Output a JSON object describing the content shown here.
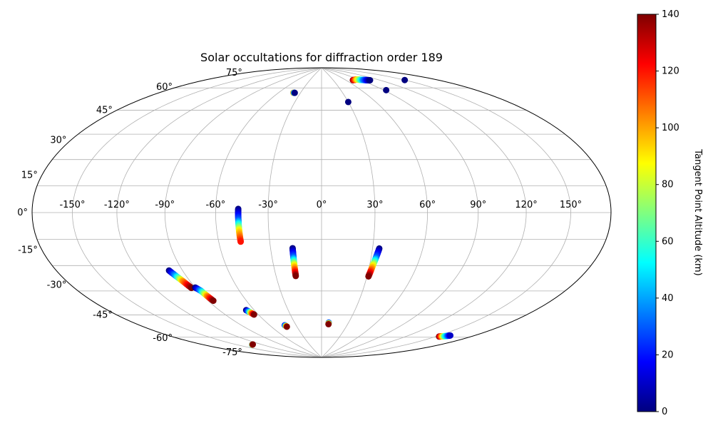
{
  "chart_data": {
    "type": "scatter",
    "projection": "aitoff-hammer",
    "title": "Solar occultations for diffraction order 189",
    "xlabel": "",
    "ylabel": "",
    "xlim": [
      -180,
      180
    ],
    "ylim": [
      -90,
      90
    ],
    "grid": true,
    "lon_ticks": [
      -150,
      -120,
      -90,
      -60,
      -30,
      0,
      30,
      60,
      90,
      120,
      150
    ],
    "lon_tick_labels": [
      "-150°",
      "-120°",
      "-90°",
      "-60°",
      "-30°",
      "0°",
      "30°",
      "60°",
      "90°",
      "120°",
      "150°"
    ],
    "lat_ticks": [
      75,
      60,
      45,
      30,
      15,
      0,
      -15,
      -30,
      -45,
      -60,
      -75
    ],
    "lat_tick_labels": [
      "75°",
      "60°",
      "45°",
      "30°",
      "15°",
      "0°",
      "-15°",
      "-30°",
      "-45°",
      "-60°",
      "-75°"
    ],
    "colorbar": {
      "label": "Tangent Point Altitude (km)",
      "colormap": "jet",
      "range": [
        0,
        140
      ],
      "ticks": [
        0,
        20,
        40,
        60,
        80,
        100,
        120,
        140
      ],
      "tick_labels": [
        "0",
        "20",
        "40",
        "60",
        "80",
        "100",
        "120",
        "140"
      ]
    },
    "tracks": [
      {
        "lon": [
          -47,
          -47,
          -47,
          -47
        ],
        "lat": [
          2,
          -4,
          -10,
          -16
        ],
        "alt": [
          0,
          30,
          90,
          120
        ]
      },
      {
        "lon": [
          -17,
          -17,
          -17,
          -17
        ],
        "lat": [
          -20,
          -25,
          -30,
          -36
        ],
        "alt": [
          0,
          30,
          90,
          140
        ]
      },
      {
        "lon": [
          34,
          33,
          32,
          31
        ],
        "lat": [
          -20,
          -25,
          -30,
          -36
        ],
        "alt": [
          0,
          30,
          90,
          140
        ]
      },
      {
        "lon": [
          -99,
          -97,
          -95,
          -93
        ],
        "lat": [
          -30,
          -33,
          -36,
          -40
        ],
        "alt": [
          0,
          40,
          100,
          140
        ]
      },
      {
        "lon": [
          -90,
          -88,
          -87,
          -86
        ],
        "lat": [
          -40,
          -42,
          -45,
          -48
        ],
        "alt": [
          0,
          40,
          100,
          140
        ]
      },
      {
        "lon": [
          -67,
          -66,
          -65,
          -64
        ],
        "lat": [
          -55,
          -56,
          -57,
          -58
        ],
        "alt": [
          0,
          40,
          100,
          140
        ]
      },
      {
        "lon": [
          -43,
          -42
        ],
        "lat": [
          -66,
          -67
        ],
        "alt": [
          20,
          140
        ]
      },
      {
        "lon": [
          8,
          8
        ],
        "lat": [
          -65,
          -66
        ],
        "alt": [
          30,
          140
        ]
      },
      {
        "lon": [
          153,
          157,
          160
        ],
        "lat": [
          -64,
          -63,
          -62
        ],
        "alt": [
          140,
          60,
          10
        ]
      },
      {
        "lon": [
          -133,
          -131
        ],
        "lat": [
          -74,
          -74
        ],
        "alt": [
          40,
          140
        ]
      },
      {
        "lon": [
          75,
          85,
          95,
          105
        ],
        "lat": [
          79,
          79,
          78,
          77
        ],
        "alt": [
          140,
          100,
          40,
          0
        ]
      },
      {
        "lon": [
          -40,
          -38
        ],
        "lat": [
          71,
          71
        ],
        "alt": [
          110,
          0
        ]
      },
      {
        "lon": [
          30
        ],
        "lat": [
          65
        ],
        "alt": [
          0
        ]
      },
      {
        "lon": [
          93
        ],
        "lat": [
          70
        ],
        "alt": [
          0
        ]
      },
      {
        "lon": [
          150
        ],
        "lat": [
          72
        ],
        "alt": [
          0
        ]
      }
    ]
  }
}
